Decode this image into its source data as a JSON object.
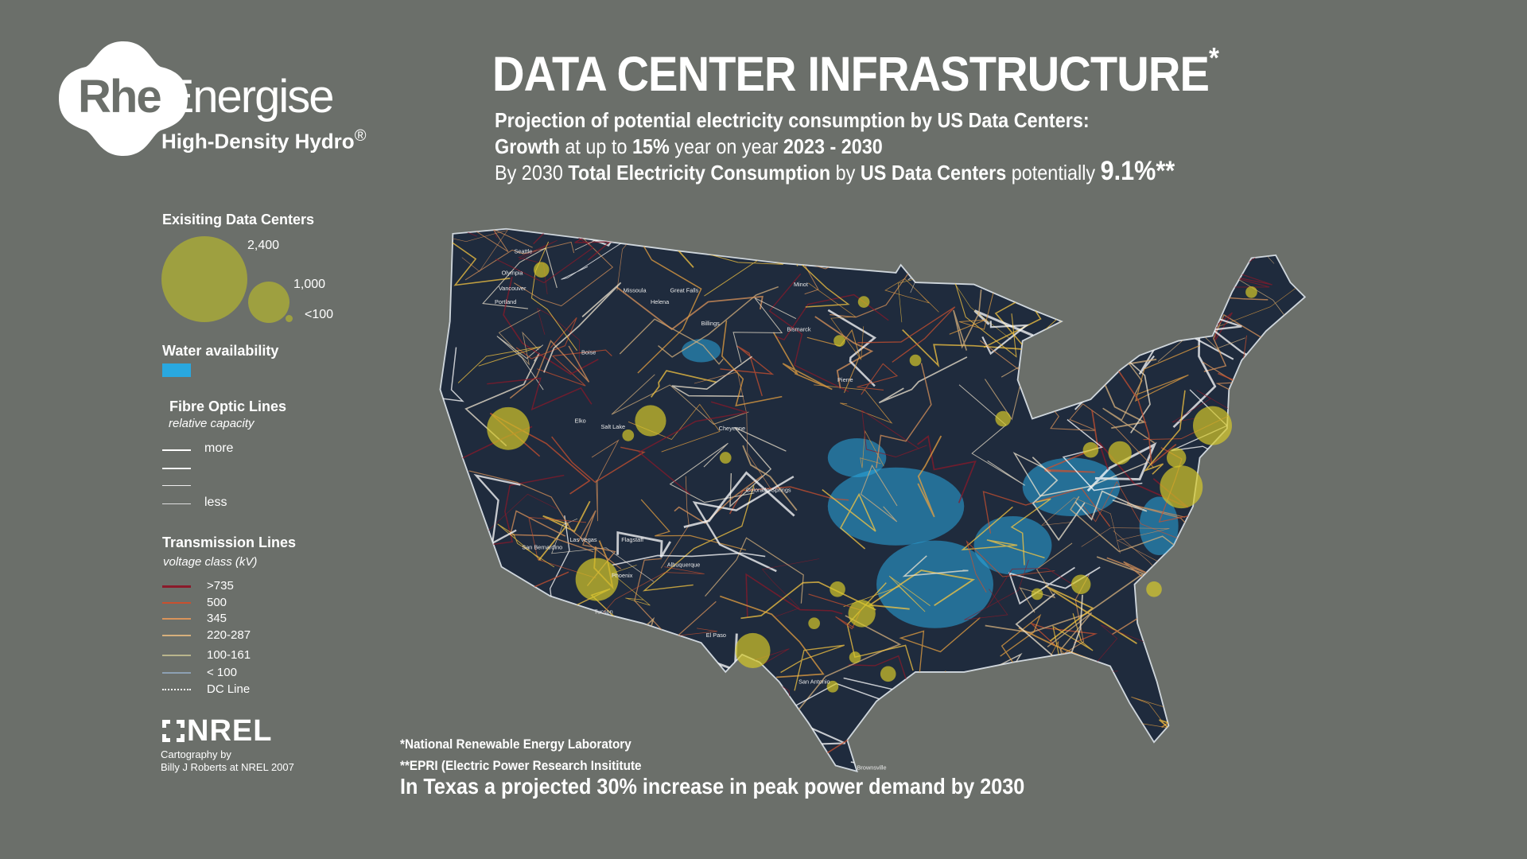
{
  "logo": {
    "part1": "Rhe",
    "part2": "Energise",
    "tagline": "High-Density Hydro",
    "reg": "®"
  },
  "header": {
    "title": "DATA CENTER INFRASTRUCTURE",
    "title_mark": "*",
    "line1": "Projection of potential electricity consumption by US Data Centers:",
    "line2": {
      "a": "Growth",
      "b": " at up to ",
      "c": "15%",
      "d": " year on year ",
      "e": "2023 - 2030"
    },
    "line3": {
      "a": "By 2030 ",
      "b": "Total Electricity Consumption",
      "c": " by ",
      "d": "US Data Centers",
      "e": " potentially ",
      "f": "9.1%**"
    }
  },
  "legend": {
    "data_centers": {
      "title": "Exisiting Data Centers",
      "sizes": [
        "2,400",
        "1,000",
        "<100"
      ]
    },
    "water": {
      "title": "Water availability",
      "color": "#29a8e0"
    },
    "fibre": {
      "title": "Fibre Optic Lines",
      "subtitle": "relative capacity",
      "more": "more",
      "less": "less"
    },
    "transmission": {
      "title": "Transmission Lines",
      "subtitle": "voltage class (kV)",
      "items": [
        {
          "label": ">735",
          "color": "#8b1a2a"
        },
        {
          "label": "500",
          "color": "#c9502f"
        },
        {
          "label": "345",
          "color": "#d9935a"
        },
        {
          "label": "220-287",
          "color": "#d6b07c"
        },
        {
          "label": "100-161",
          "color": "#b9b58c"
        },
        {
          "label": "< 100",
          "color": "#8da0b3"
        },
        {
          "label": "DC Line",
          "color": "#ffffff"
        }
      ]
    },
    "nrel": {
      "logo": "NREL",
      "credit1": "Cartography by",
      "credit2": "Billy J Roberts at NREL 2007"
    }
  },
  "map_labels": [
    "Seattle",
    "Olympia",
    "Vancouver",
    "Portland",
    "Missoula",
    "Great Falls",
    "Helena",
    "Billings",
    "Minot",
    "Bismarck",
    "Boise",
    "Pierre",
    "Elko",
    "Salt Lake",
    "Cheyenne",
    "Colorado Springs",
    "Las Vegas",
    "Flagstaff",
    "Albuquerque",
    "San Bernardino",
    "Phoenix",
    "Tucson",
    "El Paso",
    "San Antonio",
    "Brownsville"
  ],
  "footer": {
    "note1": "*National Renewable Energy Laboratory",
    "note2": "**EPRI (Electric Power Research Insititute",
    "texas": "In Texas a projected 30% increase in peak power demand by 2030"
  }
}
